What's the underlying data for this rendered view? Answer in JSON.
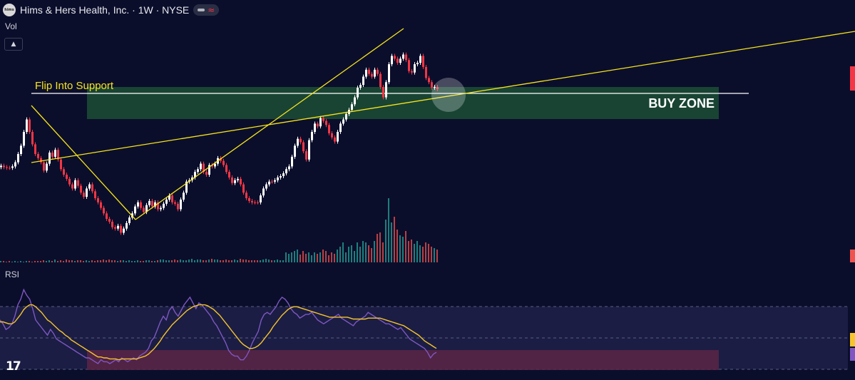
{
  "header": {
    "logo_text": "hims",
    "title": "Hims & Hers Health, Inc. · 1W · NYSE",
    "wave_symbol": "≈"
  },
  "volume_pane": {
    "label": "Vol",
    "collapse_icon": "chevron-up-icon"
  },
  "rsi_pane": {
    "label": "RSI"
  },
  "branding": {
    "logo_text": "17"
  },
  "colors": {
    "background": "#0b0e2b",
    "candle_up": "#ffffff",
    "candle_down": "#f23645",
    "volume_up": "#26a69a",
    "volume_down": "#ef5350",
    "trendline": "#f7e51a",
    "support_line": "#ffffff",
    "buy_zone": "#1b4a35",
    "rsi_line": "#7e57c2",
    "rsi_ma": "#f7c52b",
    "oversold_zone": "#5a2545"
  },
  "chart_data": [
    {
      "type": "candlestick",
      "annotations": [
        {
          "kind": "text",
          "text": "Flip Into Support",
          "color": "#f7e51a"
        },
        {
          "kind": "text",
          "text": "BUY ZONE",
          "color": "#ffffff"
        }
      ],
      "series": [
        {
          "x": [
            0,
            4,
            8,
            12,
            16,
            20,
            24,
            28,
            32,
            36,
            40,
            44,
            48,
            52,
            56,
            60,
            64,
            68,
            72,
            76,
            80,
            84,
            88,
            92,
            96,
            100,
            104,
            108,
            112,
            116,
            120,
            124,
            128,
            132,
            136,
            140,
            144,
            148,
            152,
            156,
            160,
            164,
            168,
            172,
            176,
            180,
            184,
            188,
            192,
            196,
            200,
            204,
            208,
            212,
            216,
            220,
            224,
            228,
            232,
            236,
            240,
            244,
            248,
            252,
            256,
            260,
            264,
            268,
            272,
            276,
            280,
            284,
            288,
            292,
            296,
            300,
            304,
            308,
            312,
            316,
            320,
            324,
            328,
            332,
            336,
            340,
            344,
            348,
            352,
            356,
            360,
            364,
            368,
            372,
            376,
            380,
            384,
            388,
            392,
            396,
            400,
            404,
            408,
            412,
            416,
            420,
            424,
            428,
            432,
            436,
            440,
            444,
            448,
            452,
            456,
            460,
            464,
            468,
            472,
            476,
            480,
            484,
            488,
            492,
            496,
            500,
            504,
            508,
            512,
            516,
            520,
            524,
            528,
            532,
            536,
            540,
            544,
            548,
            552,
            556,
            560,
            564,
            568,
            572,
            576,
            580,
            584,
            588,
            592,
            596,
            600,
            604,
            608,
            612
          ],
          "close": [
            209,
            211,
            212,
            212,
            210,
            204,
            192,
            180,
            160,
            142,
            160,
            178,
            192,
            198,
            204,
            216,
            206,
            190,
            196,
            186,
            200,
            214,
            222,
            228,
            236,
            242,
            230,
            238,
            248,
            254,
            242,
            236,
            246,
            256,
            262,
            270,
            278,
            286,
            290,
            298,
            300,
            296,
            306,
            300,
            292,
            284,
            278,
            268,
            262,
            270,
            276,
            266,
            260,
            268,
            262,
            272,
            270,
            264,
            258,
            252,
            262,
            264,
            272,
            258,
            248,
            232,
            230,
            226,
            218,
            214,
            206,
            218,
            222,
            208,
            210,
            206,
            198,
            202,
            208,
            218,
            226,
            234,
            230,
            228,
            236,
            248,
            256,
            260,
            262,
            262,
            262,
            252,
            242,
            236,
            232,
            232,
            230,
            226,
            224,
            220,
            214,
            210,
            196,
            180,
            170,
            175,
            188,
            200,
            172,
            160,
            148,
            152,
            140,
            144,
            150,
            162,
            168,
            174,
            160,
            148,
            142,
            134,
            128,
            120,
            110,
            96,
            92,
            80,
            70,
            76,
            80,
            70,
            76,
            95,
            110,
            88,
            62,
            50,
            54,
            60,
            54,
            48,
            56,
            72,
            74,
            62,
            60,
            50,
            66,
            82,
            88,
            96,
            95,
            98
          ]
        },
        {
          "name": "Volume",
          "values": [
            2,
            2,
            1,
            2,
            1,
            2,
            1,
            2,
            1,
            2,
            2,
            1,
            2,
            2,
            2,
            3,
            2,
            3,
            2,
            4,
            2,
            3,
            2,
            4,
            3,
            3,
            2,
            3,
            3,
            2,
            3,
            2,
            3,
            2,
            3,
            3,
            4,
            3,
            4,
            3,
            3,
            2,
            3,
            3,
            2,
            3,
            2,
            2,
            3,
            2,
            2,
            3,
            3,
            2,
            2,
            3,
            4,
            4,
            3,
            3,
            3,
            4,
            3,
            4,
            3,
            3,
            4,
            5,
            3,
            4,
            4,
            3,
            3,
            4,
            5,
            4,
            4,
            3,
            3,
            4,
            3,
            3,
            4,
            3,
            5,
            4,
            4,
            3,
            3,
            3,
            3,
            3,
            4,
            5,
            4,
            3,
            3,
            4,
            3,
            3,
            14,
            12,
            14,
            16,
            18,
            11,
            16,
            12,
            14,
            10,
            14,
            12,
            14,
            18,
            16,
            10,
            14,
            12,
            18,
            22,
            28,
            14,
            22,
            24,
            16,
            28,
            22,
            30,
            28,
            24,
            20,
            30,
            40,
            42,
            28,
            60,
            90,
            56,
            64,
            46,
            38,
            36,
            44,
            30,
            32,
            26,
            30,
            24,
            22,
            28,
            26,
            22,
            20,
            18
          ]
        }
      ]
    },
    {
      "type": "line",
      "series": [
        {
          "name": "RSI",
          "values": [
            52,
            48,
            42,
            44,
            48,
            56,
            68,
            74,
            84,
            78,
            74,
            64,
            52,
            48,
            44,
            40,
            36,
            42,
            38,
            32,
            30,
            28,
            26,
            24,
            22,
            20,
            18,
            16,
            14,
            12,
            12,
            10,
            8,
            6,
            10,
            8,
            8,
            6,
            8,
            10,
            8,
            12,
            10,
            8,
            10,
            12,
            10,
            14,
            16,
            18,
            22,
            30,
            34,
            42,
            50,
            56,
            52,
            62,
            66,
            60,
            56,
            62,
            68,
            72,
            76,
            70,
            64,
            70,
            68,
            64,
            60,
            56,
            50,
            46,
            40,
            34,
            28,
            20,
            16,
            14,
            14,
            10,
            10,
            14,
            20,
            28,
            34,
            40,
            52,
            58,
            60,
            58,
            62,
            66,
            72,
            76,
            74,
            70,
            64,
            60,
            58,
            54,
            56,
            58,
            58,
            60,
            56,
            52,
            50,
            48,
            50,
            52,
            54,
            56,
            58,
            54,
            52,
            50,
            48,
            46,
            50,
            52,
            54,
            56,
            60,
            58,
            56,
            54,
            52,
            50,
            48,
            48,
            46,
            44,
            42,
            44,
            40,
            36,
            32,
            30,
            28,
            26,
            24,
            22,
            18,
            12,
            16,
            18
          ]
        },
        {
          "name": "RSI-based MA",
          "values": [
            50,
            50,
            49,
            48,
            48,
            50,
            54,
            58,
            63,
            66,
            68,
            68,
            66,
            63,
            60,
            56,
            52,
            50,
            47,
            44,
            41,
            39,
            36,
            34,
            31,
            29,
            27,
            25,
            23,
            21,
            19,
            17,
            15,
            13,
            13,
            12,
            12,
            11,
            11,
            11,
            10,
            11,
            11,
            11,
            11,
            11,
            11,
            12,
            13,
            14,
            16,
            19,
            22,
            26,
            30,
            35,
            39,
            43,
            47,
            50,
            53,
            56,
            59,
            62,
            64,
            66,
            67,
            68,
            68,
            68,
            67,
            65,
            63,
            60,
            57,
            53,
            49,
            45,
            41,
            37,
            33,
            29,
            26,
            24,
            22,
            22,
            23,
            25,
            28,
            32,
            36,
            40,
            45,
            49,
            53,
            57,
            60,
            63,
            65,
            66,
            66,
            65,
            64,
            63,
            62,
            61,
            60,
            59,
            58,
            57,
            56,
            55,
            55,
            55,
            55,
            55,
            55,
            55,
            54,
            53,
            53,
            53,
            53,
            53,
            54,
            54,
            54,
            54,
            54,
            53,
            52,
            51,
            50,
            49,
            48,
            47,
            46,
            44,
            42,
            40,
            38,
            36,
            33,
            30,
            28,
            26,
            24,
            22
          ]
        }
      ],
      "zones": [
        {
          "name": "oversold",
          "color": "#5a2545"
        }
      ]
    }
  ]
}
